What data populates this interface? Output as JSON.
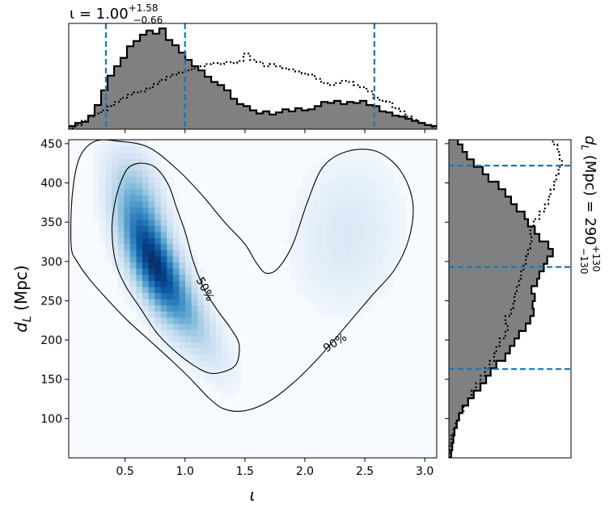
{
  "chart_data": {
    "type": "heatmap",
    "title": "ι = 1.00",
    "title_sup": "+1.58",
    "title_sub": "−0.66",
    "side_title": "d",
    "side_title_sub": "L",
    "side_title_rest": " (Mpc) = 290",
    "side_title_sup": "+130",
    "side_title_subv": "−130",
    "xlabel": "ι",
    "ylabel_main": "d",
    "ylabel_sub": "L",
    "ylabel_rest": " (Mpc)",
    "xlim": [
      0.03,
      3.1
    ],
    "ylim": [
      50,
      455
    ],
    "x_ticks": [
      0.5,
      1.0,
      1.5,
      2.0,
      2.5,
      3.0
    ],
    "x_tick_labels": [
      "0.5",
      "1.0",
      "1.5",
      "2.0",
      "2.5",
      "3.0"
    ],
    "y_ticks": [
      100,
      150,
      200,
      250,
      300,
      350,
      400,
      450
    ],
    "y_tick_labels": [
      "100",
      "150",
      "200",
      "250",
      "300",
      "350",
      "400",
      "450"
    ],
    "density_blobs": [
      {
        "cx": 0.72,
        "cy": 305,
        "sx": 0.17,
        "sy": 48,
        "rho": -0.62,
        "w": 1.0
      },
      {
        "cx": 0.95,
        "cy": 250,
        "sx": 0.22,
        "sy": 50,
        "rho": -0.8,
        "w": 0.45
      },
      {
        "cx": 0.6,
        "cy": 385,
        "sx": 0.15,
        "sy": 40,
        "rho": -0.4,
        "w": 0.35
      },
      {
        "cx": 2.35,
        "cy": 335,
        "sx": 0.28,
        "sy": 60,
        "rho": 0.1,
        "w": 0.13
      }
    ],
    "contours": [
      {
        "label": "50%",
        "label_pos": [
          1.17,
          265
        ],
        "label_rot": 62,
        "points": [
          [
            0.45,
            395
          ],
          [
            0.52,
            418
          ],
          [
            0.62,
            425
          ],
          [
            0.75,
            420
          ],
          [
            0.86,
            398
          ],
          [
            0.93,
            368
          ],
          [
            1.0,
            338
          ],
          [
            1.07,
            300
          ],
          [
            1.16,
            265
          ],
          [
            1.27,
            238
          ],
          [
            1.38,
            215
          ],
          [
            1.45,
            195
          ],
          [
            1.43,
            170
          ],
          [
            1.33,
            160
          ],
          [
            1.2,
            158
          ],
          [
            1.05,
            170
          ],
          [
            0.9,
            188
          ],
          [
            0.76,
            210
          ],
          [
            0.63,
            240
          ],
          [
            0.5,
            270
          ],
          [
            0.42,
            300
          ],
          [
            0.39,
            340
          ],
          [
            0.41,
            370
          ]
        ]
      },
      {
        "label": "90%",
        "label_pos": [
          2.25,
          197
        ],
        "label_rot": -33,
        "points": [
          [
            0.05,
            320
          ],
          [
            0.06,
            385
          ],
          [
            0.12,
            432
          ],
          [
            0.25,
            453
          ],
          [
            0.45,
            453
          ],
          [
            0.7,
            445
          ],
          [
            0.95,
            415
          ],
          [
            1.15,
            383
          ],
          [
            1.33,
            350
          ],
          [
            1.5,
            322
          ],
          [
            1.6,
            297
          ],
          [
            1.68,
            285
          ],
          [
            1.78,
            292
          ],
          [
            1.9,
            322
          ],
          [
            2.02,
            375
          ],
          [
            2.15,
            420
          ],
          [
            2.35,
            440
          ],
          [
            2.6,
            440
          ],
          [
            2.8,
            415
          ],
          [
            2.9,
            375
          ],
          [
            2.87,
            330
          ],
          [
            2.75,
            290
          ],
          [
            2.55,
            255
          ],
          [
            2.3,
            210
          ],
          [
            2.1,
            175
          ],
          [
            1.9,
            145
          ],
          [
            1.7,
            122
          ],
          [
            1.5,
            110
          ],
          [
            1.33,
            112
          ],
          [
            1.2,
            126
          ],
          [
            1.05,
            150
          ],
          [
            0.88,
            175
          ],
          [
            0.7,
            200
          ],
          [
            0.52,
            225
          ],
          [
            0.35,
            252
          ],
          [
            0.2,
            278
          ],
          [
            0.1,
            300
          ]
        ]
      }
    ],
    "top_hist": {
      "bins_start": 0.03,
      "bins_width": 0.054,
      "values": [
        0.03,
        0.06,
        0.07,
        0.13,
        0.23,
        0.37,
        0.51,
        0.6,
        0.68,
        0.79,
        0.84,
        0.9,
        0.94,
        0.91,
        0.96,
        0.85,
        0.8,
        0.73,
        0.66,
        0.6,
        0.56,
        0.5,
        0.45,
        0.42,
        0.37,
        0.29,
        0.24,
        0.22,
        0.18,
        0.15,
        0.17,
        0.14,
        0.16,
        0.19,
        0.17,
        0.2,
        0.18,
        0.19,
        0.22,
        0.26,
        0.25,
        0.27,
        0.24,
        0.26,
        0.25,
        0.27,
        0.23,
        0.22,
        0.17,
        0.16,
        0.13,
        0.12,
        0.1,
        0.08,
        0.06,
        0.04,
        0.03
      ],
      "prior": [
        0.01,
        0.04,
        0.08,
        0.12,
        0.15,
        0.18,
        0.22,
        0.26,
        0.3,
        0.33,
        0.35,
        0.36,
        0.39,
        0.43,
        0.47,
        0.5,
        0.52,
        0.54,
        0.56,
        0.58,
        0.6,
        0.62,
        0.63,
        0.62,
        0.64,
        0.63,
        0.65,
        0.72,
        0.66,
        0.64,
        0.6,
        0.62,
        0.6,
        0.58,
        0.57,
        0.55,
        0.53,
        0.52,
        0.48,
        0.44,
        0.42,
        0.44,
        0.46,
        0.45,
        0.42,
        0.4,
        0.36,
        0.3,
        0.27,
        0.26,
        0.2,
        0.17,
        0.12,
        0.09,
        0.06,
        0.04,
        0.02
      ],
      "lines": [
        0.34,
        1.0,
        2.58
      ]
    },
    "side_hist": {
      "bins_start": 50,
      "bins_width": 9.5,
      "values": [
        0.02,
        0.03,
        0.04,
        0.05,
        0.07,
        0.09,
        0.12,
        0.17,
        0.22,
        0.28,
        0.33,
        0.37,
        0.42,
        0.5,
        0.54,
        0.58,
        0.62,
        0.68,
        0.72,
        0.75,
        0.74,
        0.76,
        0.73,
        0.78,
        0.8,
        0.84,
        0.87,
        0.92,
        0.88,
        0.8,
        0.76,
        0.7,
        0.67,
        0.6,
        0.55,
        0.5,
        0.44,
        0.35,
        0.3,
        0.22,
        0.16,
        0.12,
        0.08,
        0.05
      ],
      "prior": [
        0.0,
        0.01,
        0.02,
        0.04,
        0.06,
        0.09,
        0.13,
        0.17,
        0.2,
        0.24,
        0.28,
        0.32,
        0.36,
        0.4,
        0.42,
        0.45,
        0.5,
        0.52,
        0.5,
        0.55,
        0.57,
        0.58,
        0.6,
        0.62,
        0.64,
        0.66,
        0.68,
        0.7,
        0.72,
        0.73,
        0.72,
        0.75,
        0.8,
        0.85,
        0.88,
        0.9,
        0.93,
        0.95,
        0.97,
        1.0,
        0.98,
        0.96,
        0.92,
        0.9
      ],
      "lines": [
        163,
        293,
        422
      ]
    }
  }
}
